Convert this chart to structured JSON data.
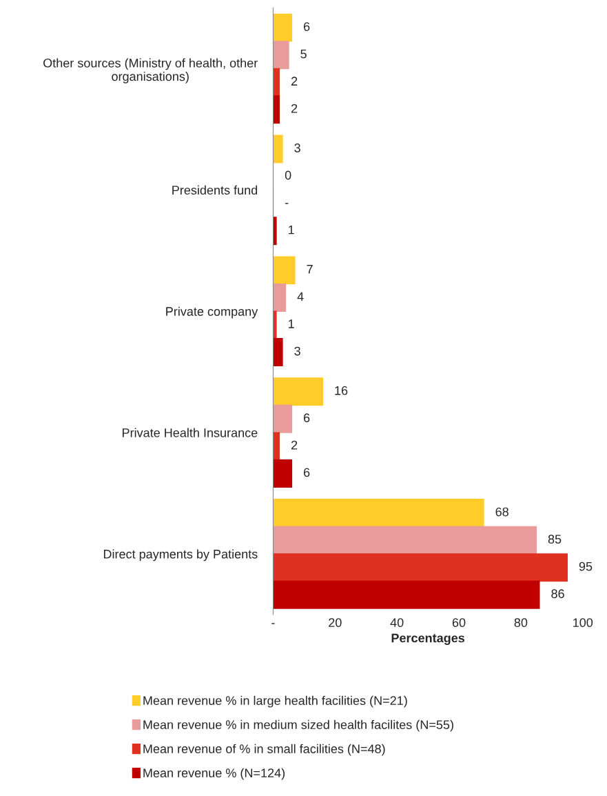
{
  "chart_data": {
    "type": "bar",
    "orientation": "horizontal",
    "xlabel": "Percentages",
    "categories": [
      "Other sources (Ministry of health, other\norganisations)",
      "Presidents fund",
      "Private company",
      "Private Health Insurance",
      "Direct payments by Patients"
    ],
    "series": [
      {
        "name": "Mean revenue % in large health facilities (N=21)",
        "color": "#ffcc29",
        "values": [
          6,
          3,
          7,
          16,
          68
        ],
        "value_labels": [
          "6",
          "3",
          "7",
          "16",
          "68"
        ]
      },
      {
        "name": "Mean revenue % in medium sized health facilites (N=55)",
        "color": "#e99a9a",
        "values": [
          5,
          0,
          4,
          6,
          85
        ],
        "value_labels": [
          "5",
          "0",
          "4",
          "6",
          "85"
        ]
      },
      {
        "name": "Mean revenue of % in small facilities (N=48)",
        "color": "#e03020",
        "values": [
          2,
          0,
          1,
          2,
          95
        ],
        "value_labels": [
          "2",
          "-",
          "1",
          "2",
          "95"
        ]
      },
      {
        "name": "Mean revenue % (N=124)",
        "color": "#c00000",
        "values": [
          2,
          1,
          3,
          6,
          86
        ],
        "value_labels": [
          "2",
          "1",
          "3",
          "6",
          "86"
        ]
      }
    ],
    "xlim": [
      0,
      100
    ],
    "xticks": [
      {
        "value": 0,
        "label": "-"
      },
      20,
      40,
      60,
      80,
      100
    ],
    "grid": false,
    "legend": "bottom"
  }
}
